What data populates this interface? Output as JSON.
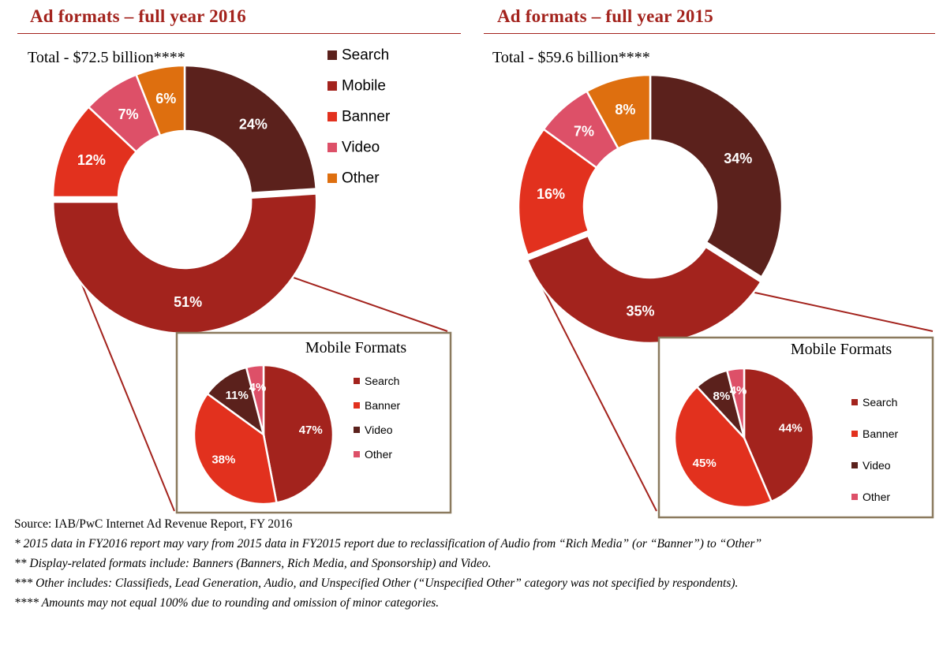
{
  "panels": [
    {
      "title": "Ad formats – full year 2016",
      "total": "Total - $72.5 billion****"
    },
    {
      "title": "Ad formats – full year 2015",
      "total": "Total - $59.6 billion****"
    }
  ],
  "colors": {
    "Search": "#5b211c",
    "Mobile": "#a3231d",
    "Banner": "#e2311e",
    "Video": "#dd5068",
    "Other": "#de6f0f",
    "MobileSearch": "#a3231d",
    "MobileBanner": "#e2311e",
    "MobileVideo": "#5b211c",
    "MobileOther": "#dd5068",
    "frame": "#8b7a5e",
    "title": "#a3231d"
  },
  "chart_data": [
    {
      "type": "pie",
      "title": "Ad formats – full year 2016",
      "subtitle": "Total - $72.5 billion****",
      "legend": [
        "Search",
        "Mobile",
        "Banner",
        "Video",
        "Other"
      ],
      "legend_placement": "right",
      "slices": [
        {
          "label": "Search",
          "value": 24,
          "text": "24%"
        },
        {
          "label": "Mobile",
          "value": 51,
          "text": "51%"
        },
        {
          "label": "Banner",
          "value": 12,
          "text": "12%"
        },
        {
          "label": "Video",
          "value": 7,
          "text": "7%"
        },
        {
          "label": "Other",
          "value": 6,
          "text": "6%"
        }
      ]
    },
    {
      "type": "pie",
      "title": "Mobile Formats",
      "legend": [
        "Search",
        "Banner",
        "Video",
        "Other"
      ],
      "legend_placement": "right",
      "slices": [
        {
          "label": "Search",
          "value": 47,
          "text": "47%"
        },
        {
          "label": "Banner",
          "value": 38,
          "text": "38%"
        },
        {
          "label": "Video",
          "value": 11,
          "text": "11%"
        },
        {
          "label": "Other",
          "value": 4,
          "text": "4%"
        }
      ]
    },
    {
      "type": "pie",
      "title": "Ad formats – full year 2015",
      "subtitle": "Total - $59.6 billion****",
      "slices": [
        {
          "label": "Search",
          "value": 34,
          "text": "34%"
        },
        {
          "label": "Mobile",
          "value": 35,
          "text": "35%"
        },
        {
          "label": "Banner",
          "value": 16,
          "text": "16%"
        },
        {
          "label": "Video",
          "value": 7,
          "text": "7%"
        },
        {
          "label": "Other",
          "value": 8,
          "text": "8%"
        }
      ]
    },
    {
      "type": "pie",
      "title": "Mobile Formats",
      "legend": [
        "Search",
        "Banner",
        "Video",
        "Other"
      ],
      "legend_placement": "right",
      "slices": [
        {
          "label": "Search",
          "value": 44,
          "text": "44%"
        },
        {
          "label": "Banner",
          "value": 45,
          "text": "45%"
        },
        {
          "label": "Video",
          "value": 8,
          "text": "8%"
        },
        {
          "label": "Other",
          "value": 4,
          "text": "4%"
        }
      ]
    }
  ],
  "notes": {
    "source": "Source: IAB/PwC Internet Ad Revenue Report, FY 2016",
    "fn1": "* 2015 data in FY2016 report may vary from 2015 data in FY2015 report due to reclassification of Audio from “Rich Media” (or “Banner”) to “Other”",
    "fn2": "** Display-related formats include: Banners (Banners, Rich Media, and Sponsorship) and Video.",
    "fn3": "*** Other includes: Classifieds, Lead Generation, Audio, and Unspecified Other (“Unspecified Other” category was not specified by respondents).",
    "fn4": "**** Amounts may not equal 100% due to rounding and omission of minor categories."
  }
}
